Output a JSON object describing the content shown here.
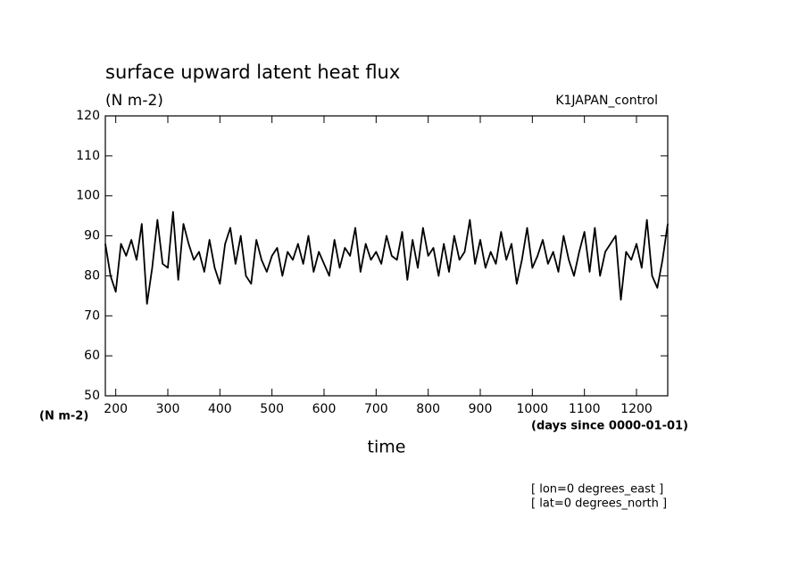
{
  "chart_data": {
    "type": "line",
    "title": "surface upward latent heat flux",
    "subtitle": "(N m-2)",
    "label": "K1JAPAN_control",
    "ylabel": "(N m-2)",
    "xlabel": "time",
    "xunits": "(days since 0000-01-01)",
    "annotations": [
      "[ lon=0 degrees_east ]",
      "[ lat=0 degrees_north ]"
    ],
    "x": [
      180,
      190,
      200,
      210,
      220,
      230,
      240,
      250,
      260,
      270,
      280,
      290,
      300,
      310,
      320,
      330,
      340,
      350,
      360,
      370,
      380,
      390,
      400,
      410,
      420,
      430,
      440,
      450,
      460,
      470,
      480,
      490,
      500,
      510,
      520,
      530,
      540,
      550,
      560,
      570,
      580,
      590,
      600,
      610,
      620,
      630,
      640,
      650,
      660,
      670,
      680,
      690,
      700,
      710,
      720,
      730,
      740,
      750,
      760,
      770,
      780,
      790,
      800,
      810,
      820,
      830,
      840,
      850,
      860,
      870,
      880,
      890,
      900,
      910,
      920,
      930,
      940,
      950,
      960,
      970,
      980,
      990,
      1000,
      1010,
      1020,
      1030,
      1040,
      1050,
      1060,
      1070,
      1080,
      1090,
      1100,
      1110,
      1120,
      1130,
      1140,
      1150,
      1160,
      1170,
      1180,
      1190,
      1200,
      1210,
      1220,
      1230,
      1240,
      1250,
      1260
    ],
    "series": [
      {
        "color": "#000000",
        "values": [
          88,
          80,
          76,
          88,
          85,
          89,
          84,
          93,
          73,
          82,
          94,
          83,
          82,
          96,
          79,
          93,
          88,
          84,
          86,
          81,
          89,
          82,
          78,
          88,
          92,
          83,
          90,
          80,
          78,
          89,
          84,
          81,
          85,
          87,
          80,
          86,
          84,
          88,
          83,
          90,
          81,
          86,
          83,
          80,
          89,
          82,
          87,
          85,
          92,
          81,
          88,
          84,
          86,
          83,
          90,
          85,
          84,
          91,
          79,
          89,
          82,
          92,
          85,
          87,
          80,
          88,
          81,
          90,
          84,
          86,
          94,
          83,
          89,
          82,
          86,
          83,
          91,
          84,
          88,
          78,
          84,
          92,
          82,
          85,
          89,
          83,
          86,
          81,
          90,
          84,
          80,
          86,
          91,
          81,
          92,
          80,
          86,
          88,
          90,
          74,
          86,
          84,
          88,
          82,
          94,
          80,
          77,
          84,
          93
        ]
      }
    ],
    "xlim": [
      180,
      1260
    ],
    "ylim": [
      50,
      120
    ],
    "xticks": [
      200,
      300,
      400,
      500,
      600,
      700,
      800,
      900,
      1000,
      1100,
      1200
    ],
    "yticks": [
      50,
      60,
      70,
      80,
      90,
      100,
      110,
      120
    ]
  }
}
